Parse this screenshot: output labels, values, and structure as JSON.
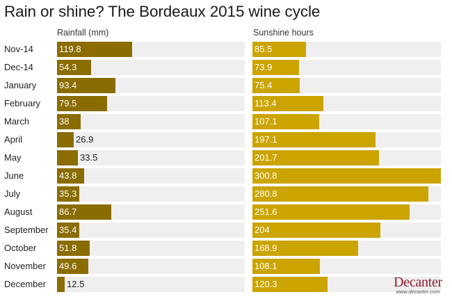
{
  "title": "Rain or shine? The Bordeaux 2015 wine cycle",
  "headers": {
    "rainfall": "Rainfall (mm)",
    "sunshine": "Sunshine hours"
  },
  "colors": {
    "rainfall_bar": "#8a6c00",
    "sunshine_bar": "#cba400",
    "track": "#efefef",
    "logo": "#8b1b2c"
  },
  "logo": {
    "name": "Decanter",
    "url": "www.decanter.com"
  },
  "rows": [
    {
      "label": "Nov-14",
      "rain": "119.8",
      "sun": "85.5"
    },
    {
      "label": "Dec-14",
      "rain": "54.3",
      "sun": "73.9"
    },
    {
      "label": "January",
      "rain": "93.4",
      "sun": "75.4"
    },
    {
      "label": "February",
      "rain": "79.5",
      "sun": "113.4"
    },
    {
      "label": "March",
      "rain": "38",
      "sun": "107.1"
    },
    {
      "label": "April",
      "rain": "26.9",
      "sun": "197.1"
    },
    {
      "label": "May",
      "rain": "33.5",
      "sun": "201.7"
    },
    {
      "label": "June",
      "rain": "43.8",
      "sun": "300.8"
    },
    {
      "label": "July",
      "rain": "35.3",
      "sun": "280.8"
    },
    {
      "label": "August",
      "rain": "86.7",
      "sun": "251.6"
    },
    {
      "label": "September",
      "rain": "35.4",
      "sun": "204"
    },
    {
      "label": "October",
      "rain": "51.8",
      "sun": "168.9"
    },
    {
      "label": "November",
      "rain": "49.6",
      "sun": "108.1"
    },
    {
      "label": "December",
      "rain": "12.5",
      "sun": "120.3"
    }
  ],
  "chart_data": [
    {
      "type": "bar",
      "orientation": "horizontal",
      "title": "Rain or shine? The Bordeaux 2015 wine cycle",
      "subtitle": "Rainfall (mm)",
      "categories": [
        "Nov-14",
        "Dec-14",
        "January",
        "February",
        "March",
        "April",
        "May",
        "June",
        "July",
        "August",
        "September",
        "October",
        "November",
        "December"
      ],
      "values": [
        119.8,
        54.3,
        93.4,
        79.5,
        38,
        26.9,
        33.5,
        43.8,
        35.3,
        86.7,
        35.4,
        51.8,
        49.6,
        12.5
      ],
      "xlabel": "Rainfall (mm)",
      "ylabel": "",
      "xlim": [
        0,
        300
      ],
      "grid": false,
      "color": "#8a6c00"
    },
    {
      "type": "bar",
      "orientation": "horizontal",
      "title": "Rain or shine? The Bordeaux 2015 wine cycle",
      "subtitle": "Sunshine hours",
      "categories": [
        "Nov-14",
        "Dec-14",
        "January",
        "February",
        "March",
        "April",
        "May",
        "June",
        "July",
        "August",
        "September",
        "October",
        "November",
        "December"
      ],
      "values": [
        85.5,
        73.9,
        75.4,
        113.4,
        107.1,
        197.1,
        201.7,
        300.8,
        280.8,
        251.6,
        204,
        168.9,
        108.1,
        120.3
      ],
      "xlabel": "Sunshine hours",
      "ylabel": "",
      "xlim": [
        0,
        300.8
      ],
      "grid": false,
      "color": "#cba400"
    }
  ]
}
